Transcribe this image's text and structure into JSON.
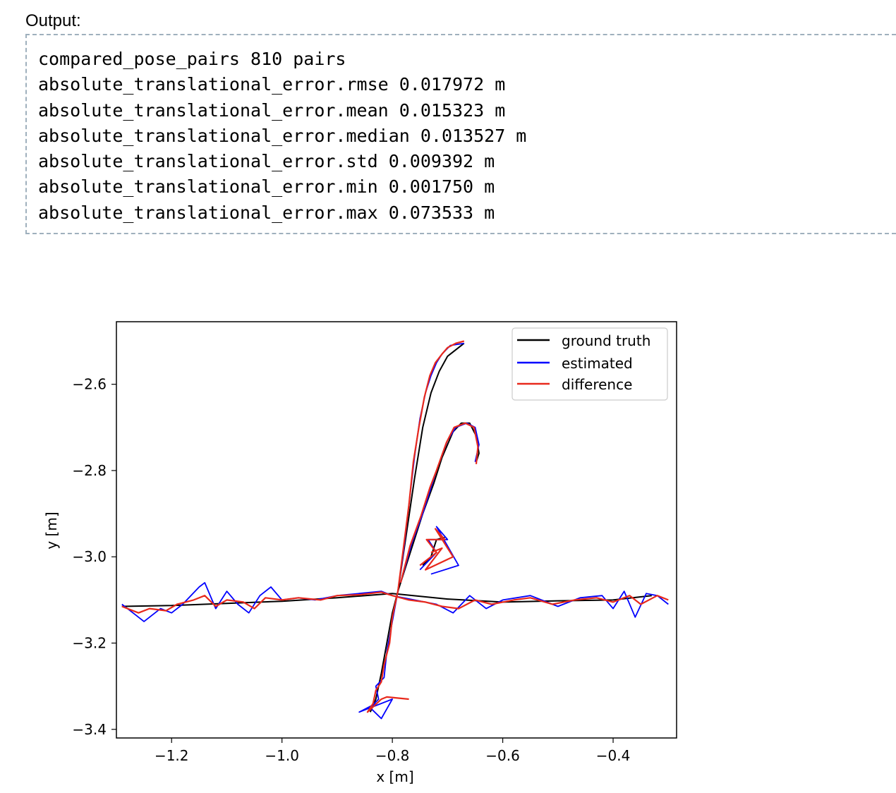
{
  "output": {
    "label": "Output:",
    "lines": [
      "compared_pose_pairs 810 pairs",
      "absolute_translational_error.rmse 0.017972 m",
      "absolute_translational_error.mean 0.015323 m",
      "absolute_translational_error.median 0.013527 m",
      "absolute_translational_error.std 0.009392 m",
      "absolute_translational_error.min 0.001750 m",
      "absolute_translational_error.max 0.073533 m"
    ]
  },
  "chart_data": {
    "type": "line",
    "title": "",
    "xlabel": "x [m]",
    "ylabel": "y [m]",
    "xlim": [
      -1.3,
      -0.285
    ],
    "ylim": [
      -3.42,
      -2.455
    ],
    "xticks": [
      -1.2,
      -1.0,
      -0.8,
      -0.6,
      -0.4
    ],
    "xtick_labels": [
      "−1.2",
      "−1.0",
      "−0.8",
      "−0.6",
      "−0.4"
    ],
    "yticks": [
      -2.6,
      -2.8,
      -3.0,
      -3.2,
      -3.4
    ],
    "ytick_labels": [
      "−2.6",
      "−2.8",
      "−3.0",
      "−3.2",
      "−3.4"
    ],
    "grid": false,
    "legend_position": "top-right",
    "colors": {
      "ground_truth": "#000000",
      "estimated": "#0000ff",
      "difference": "#e8291c"
    },
    "series": [
      {
        "name": "ground truth",
        "paths": [
          {
            "x": [
              -1.29,
              -1.2,
              -1.1,
              -1.0,
              -0.9,
              -0.8,
              -0.7,
              -0.6,
              -0.5,
              -0.4,
              -0.33
            ],
            "y": [
              -3.115,
              -3.113,
              -3.108,
              -3.103,
              -3.095,
              -3.085,
              -3.098,
              -3.105,
              -3.102,
              -3.1,
              -3.09
            ]
          },
          {
            "x": [
              -0.79,
              -0.8,
              -0.81,
              -0.82,
              -0.83,
              -0.84
            ],
            "y": [
              -3.08,
              -3.13,
              -3.2,
              -3.27,
              -3.33,
              -3.36
            ]
          },
          {
            "x": [
              -0.79,
              -0.775,
              -0.76,
              -0.745,
              -0.73,
              -0.715,
              -0.7,
              -0.67
            ],
            "y": [
              -3.08,
              -2.95,
              -2.82,
              -2.7,
              -2.62,
              -2.57,
              -2.535,
              -2.505
            ]
          },
          {
            "x": [
              -0.79,
              -0.765,
              -0.745,
              -0.725,
              -0.71,
              -0.69,
              -0.675,
              -0.66,
              -0.648,
              -0.643,
              -0.648
            ],
            "y": [
              -3.08,
              -2.98,
              -2.9,
              -2.83,
              -2.77,
              -2.71,
              -2.69,
              -2.69,
              -2.72,
              -2.76,
              -2.78
            ]
          },
          {
            "x": [
              -0.745,
              -0.73,
              -0.72,
              -0.705
            ],
            "y": [
              -3.02,
              -3.0,
              -2.96,
              -2.955
            ]
          }
        ]
      },
      {
        "name": "estimated",
        "paths": [
          {
            "x": [
              -1.29,
              -1.27,
              -1.25,
              -1.22,
              -1.2,
              -1.18,
              -1.15,
              -1.14,
              -1.12,
              -1.1,
              -1.08,
              -1.06,
              -1.04,
              -1.02,
              -1.0,
              -0.97,
              -0.94,
              -0.9,
              -0.86,
              -0.82,
              -0.8,
              -0.76,
              -0.72,
              -0.69,
              -0.66,
              -0.63,
              -0.6,
              -0.55,
              -0.5,
              -0.46,
              -0.42,
              -0.4,
              -0.38,
              -0.36,
              -0.34,
              -0.32,
              -0.3
            ],
            "y": [
              -3.11,
              -3.13,
              -3.15,
              -3.12,
              -3.13,
              -3.11,
              -3.07,
              -3.06,
              -3.12,
              -3.08,
              -3.11,
              -3.13,
              -3.09,
              -3.07,
              -3.1,
              -3.095,
              -3.1,
              -3.09,
              -3.085,
              -3.08,
              -3.09,
              -3.1,
              -3.11,
              -3.13,
              -3.09,
              -3.12,
              -3.1,
              -3.09,
              -3.115,
              -3.095,
              -3.09,
              -3.12,
              -3.08,
              -3.14,
              -3.085,
              -3.09,
              -3.11
            ]
          },
          {
            "x": [
              -0.79,
              -0.8,
              -0.81,
              -0.815,
              -0.83,
              -0.825,
              -0.84,
              -0.82,
              -0.8,
              -0.86,
              -0.83
            ],
            "y": [
              -3.08,
              -3.15,
              -3.22,
              -3.28,
              -3.3,
              -3.33,
              -3.35,
              -3.375,
              -3.33,
              -3.36,
              -3.34
            ]
          },
          {
            "x": [
              -0.79,
              -0.78,
              -0.77,
              -0.76,
              -0.75,
              -0.74,
              -0.73,
              -0.72,
              -0.71,
              -0.695,
              -0.67
            ],
            "y": [
              -3.08,
              -2.99,
              -2.88,
              -2.77,
              -2.68,
              -2.62,
              -2.58,
              -2.55,
              -2.53,
              -2.51,
              -2.505
            ]
          },
          {
            "x": [
              -0.785,
              -0.765,
              -0.745,
              -0.73,
              -0.72,
              -0.7,
              -0.685,
              -0.665,
              -0.65,
              -0.643,
              -0.65
            ],
            "y": [
              -3.06,
              -2.97,
              -2.9,
              -2.84,
              -2.8,
              -2.73,
              -2.7,
              -2.69,
              -2.7,
              -2.74,
              -2.78
            ]
          },
          {
            "x": [
              -0.75,
              -0.72,
              -0.735,
              -0.7,
              -0.72,
              -0.68,
              -0.73
            ],
            "y": [
              -3.03,
              -2.99,
              -2.96,
              -2.96,
              -2.93,
              -3.02,
              -3.04
            ]
          }
        ]
      },
      {
        "name": "difference",
        "paths": [
          {
            "x": [
              -1.29,
              -1.26,
              -1.24,
              -1.21,
              -1.19,
              -1.16,
              -1.14,
              -1.12,
              -1.1,
              -1.07,
              -1.05,
              -1.03,
              -1.0,
              -0.97,
              -0.93,
              -0.9,
              -0.86,
              -0.82,
              -0.8,
              -0.77,
              -0.74,
              -0.71,
              -0.68,
              -0.65,
              -0.62,
              -0.58,
              -0.55,
              -0.51,
              -0.47,
              -0.43,
              -0.4,
              -0.37,
              -0.35,
              -0.32,
              -0.3
            ],
            "y": [
              -3.115,
              -3.13,
              -3.12,
              -3.125,
              -3.11,
              -3.1,
              -3.09,
              -3.115,
              -3.1,
              -3.105,
              -3.12,
              -3.095,
              -3.1,
              -3.095,
              -3.1,
              -3.09,
              -3.088,
              -3.082,
              -3.09,
              -3.1,
              -3.105,
              -3.115,
              -3.12,
              -3.1,
              -3.11,
              -3.1,
              -3.095,
              -3.11,
              -3.1,
              -3.095,
              -3.105,
              -3.09,
              -3.11,
              -3.09,
              -3.1
            ]
          },
          {
            "x": [
              -0.79,
              -0.8,
              -0.805,
              -0.815,
              -0.82,
              -0.83,
              -0.835,
              -0.845,
              -0.82,
              -0.81,
              -0.77
            ],
            "y": [
              -3.08,
              -3.14,
              -3.2,
              -3.25,
              -3.29,
              -3.31,
              -3.34,
              -3.36,
              -3.33,
              -3.325,
              -3.33
            ]
          },
          {
            "x": [
              -0.79,
              -0.78,
              -0.77,
              -0.762,
              -0.752,
              -0.742,
              -0.732,
              -0.722,
              -0.71,
              -0.7,
              -0.685,
              -0.67
            ],
            "y": [
              -3.08,
              -2.98,
              -2.88,
              -2.78,
              -2.7,
              -2.63,
              -2.58,
              -2.55,
              -2.53,
              -2.515,
              -2.505,
              -2.5
            ]
          },
          {
            "x": [
              -0.785,
              -0.768,
              -0.748,
              -0.732,
              -0.72,
              -0.702,
              -0.688,
              -0.668,
              -0.652,
              -0.645,
              -0.648
            ],
            "y": [
              -3.06,
              -2.975,
              -2.905,
              -2.84,
              -2.8,
              -2.735,
              -2.7,
              -2.69,
              -2.7,
              -2.745,
              -2.785
            ]
          },
          {
            "x": [
              -0.75,
              -0.72,
              -0.738,
              -0.705,
              -0.722,
              -0.69,
              -0.74,
              -0.71,
              -0.73
            ],
            "y": [
              -3.02,
              -2.99,
              -2.96,
              -2.96,
              -2.935,
              -3.0,
              -3.03,
              -2.98,
              -2.99
            ]
          }
        ]
      }
    ]
  }
}
